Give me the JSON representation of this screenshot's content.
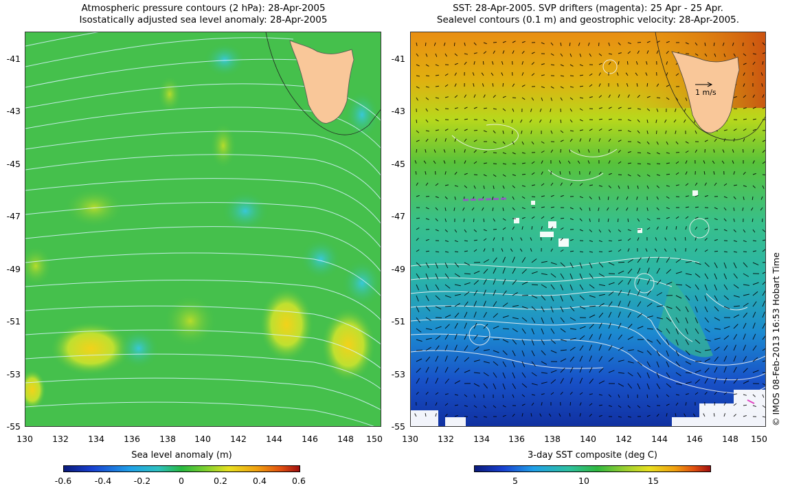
{
  "left": {
    "title_line1": "Atmospheric pressure contours (2 hPa): 28-Apr-2005",
    "title_line2": "Isostatically adjusted sea level anomaly: 28-Apr-2005",
    "lat_ticks": [
      "-41",
      "-43",
      "-45",
      "-47",
      "-49",
      "-51",
      "-53",
      "-55"
    ],
    "lon_ticks": [
      "130",
      "132",
      "134",
      "136",
      "138",
      "140",
      "142",
      "144",
      "146",
      "148",
      "150"
    ],
    "colorbar_label": "Sea level anomaly (m)",
    "colorbar_ticks": [
      "-0.6",
      "-0.4",
      "-0.2",
      "0",
      "0.2",
      "0.4",
      "0.6"
    ]
  },
  "right": {
    "title_line1": "SST: 28-Apr-2005. SVP drifters (magenta): 25 Apr - 25 Apr.",
    "title_line2": "Sealevel contours (0.1 m) and geostrophic velocity: 28-Apr-2005.",
    "lat_ticks": [
      "-41",
      "-43",
      "-45",
      "-47",
      "-49",
      "-51",
      "-53",
      "-55"
    ],
    "lon_ticks": [
      "130",
      "132",
      "134",
      "136",
      "138",
      "140",
      "142",
      "144",
      "146",
      "148",
      "150"
    ],
    "velocity_scale_label": "1 m/s",
    "colorbar_label": "3-day SST composite (deg C)",
    "colorbar_ticks": [
      "5",
      "10",
      "15"
    ]
  },
  "credit": "© IMOS 08-Feb-2013 16:53 Hobart Time",
  "colors": {
    "land": "#f9c799",
    "sla_bg": "#3fbf4a",
    "sst_warm": "#e08a10",
    "sst_cold": "#1040c0"
  }
}
